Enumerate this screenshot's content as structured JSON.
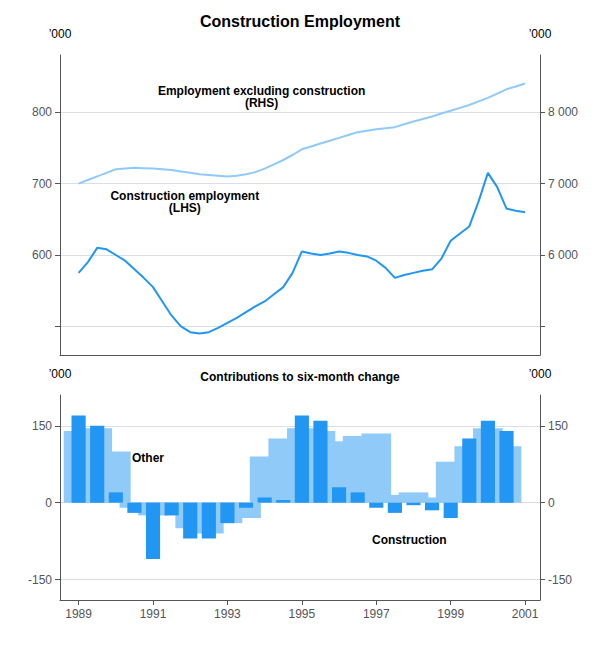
{
  "chart_data": [
    {
      "type": "line",
      "title": "Construction Employment",
      "x": [
        1989.0,
        1989.25,
        1989.5,
        1989.75,
        1990.0,
        1990.25,
        1990.5,
        1990.75,
        1991.0,
        1991.25,
        1991.5,
        1991.75,
        1992.0,
        1992.25,
        1992.5,
        1992.75,
        1993.0,
        1993.25,
        1993.5,
        1993.75,
        1994.0,
        1994.25,
        1994.5,
        1994.75,
        1995.0,
        1995.25,
        1995.5,
        1995.75,
        1996.0,
        1996.25,
        1996.5,
        1996.75,
        1997.0,
        1997.25,
        1997.5,
        1997.75,
        1998.0,
        1998.25,
        1998.5,
        1998.75,
        1999.0,
        1999.25,
        1999.5,
        1999.75,
        2000.0,
        2000.25,
        2000.5,
        2000.75,
        2001.0
      ],
      "series": [
        {
          "color": "#2196F3",
          "values": [
            575,
            590,
            610,
            608,
            600,
            592,
            580,
            568,
            555,
            535,
            515,
            500,
            492,
            490,
            492,
            498,
            505,
            512,
            520,
            528,
            535,
            545,
            555,
            575,
            605,
            602,
            600,
            602,
            605,
            603,
            600,
            598,
            592,
            582,
            568,
            572,
            575,
            578,
            580,
            595,
            620,
            630,
            640,
            675,
            715,
            695,
            665,
            662,
            660
          ]
        },
        {
          "color": "#90CAF9",
          "axis": "y2",
          "values": [
            7000,
            7050,
            7100,
            7150,
            7200,
            7210,
            7220,
            7215,
            7210,
            7200,
            7190,
            7170,
            7150,
            7130,
            7120,
            7110,
            7100,
            7110,
            7130,
            7160,
            7210,
            7270,
            7330,
            7400,
            7480,
            7520,
            7560,
            7600,
            7640,
            7680,
            7720,
            7740,
            7760,
            7775,
            7790,
            7830,
            7870,
            7905,
            7940,
            7980,
            8020,
            8060,
            8100,
            8150,
            8200,
            8260,
            8320,
            8360,
            8400
          ]
        }
      ],
      "xlim": [
        1988.5,
        2001.4
      ],
      "xticks": [
        1989,
        1991,
        1993,
        1995,
        1997,
        1999,
        2001
      ],
      "ylim": [
        460,
        880
      ],
      "yticks": [
        {
          "value": 500,
          "label": ""
        },
        600,
        700,
        800
      ],
      "y2lim": [
        4600,
        8800
      ],
      "y2ticks": [
        {
          "value": 5000,
          "label": ""
        },
        {
          "value": 6000,
          "label": "6 000"
        },
        {
          "value": 7000,
          "label": "7 000"
        },
        {
          "value": 8000,
          "label": "8 000"
        }
      ],
      "ylabel": "’000",
      "y2label": "’000",
      "annotations": [
        "Employment excluding construction\n(RHS)",
        "Construction employment\n(LHS)"
      ],
      "grid": true,
      "tick_labels": "y"
    },
    {
      "type": "bar",
      "title": "Contributions to six-month change",
      "x": [
        1989.0,
        1989.5,
        1990.0,
        1990.5,
        1991.0,
        1991.5,
        1992.0,
        1992.5,
        1993.0,
        1993.5,
        1994.0,
        1994.5,
        1995.0,
        1995.5,
        1996.0,
        1996.5,
        1997.0,
        1997.5,
        1998.0,
        1998.5,
        1999.0,
        1999.5,
        2000.0,
        2000.5
      ],
      "series": [
        {
          "color": "#90CAF9",
          "values": [
            140,
            145,
            100,
            -10,
            -25,
            -10,
            -50,
            -60,
            -40,
            -30,
            90,
            125,
            145,
            140,
            120,
            130,
            135,
            15,
            20,
            10,
            80,
            110,
            145,
            110
          ]
        },
        {
          "color": "#2196F3",
          "values": [
            170,
            150,
            20,
            -20,
            -110,
            -25,
            -70,
            -70,
            -40,
            -10,
            10,
            5,
            170,
            160,
            30,
            20,
            -10,
            -20,
            -5,
            -15,
            -30,
            125,
            160,
            140
          ]
        }
      ],
      "xlim": [
        1988.5,
        2001.4
      ],
      "xticks": [
        1989,
        1991,
        1993,
        1995,
        1997,
        1999,
        2001
      ],
      "ylim": [
        -190,
        210
      ],
      "yticks": [
        -150,
        0,
        150
      ],
      "y2lim": [
        -190,
        210
      ],
      "y2ticks": [
        -150,
        0,
        150
      ],
      "ylabel": "’000",
      "y2label": "’000",
      "annotations": [
        "Other",
        "Construction"
      ],
      "grid": true
    }
  ]
}
